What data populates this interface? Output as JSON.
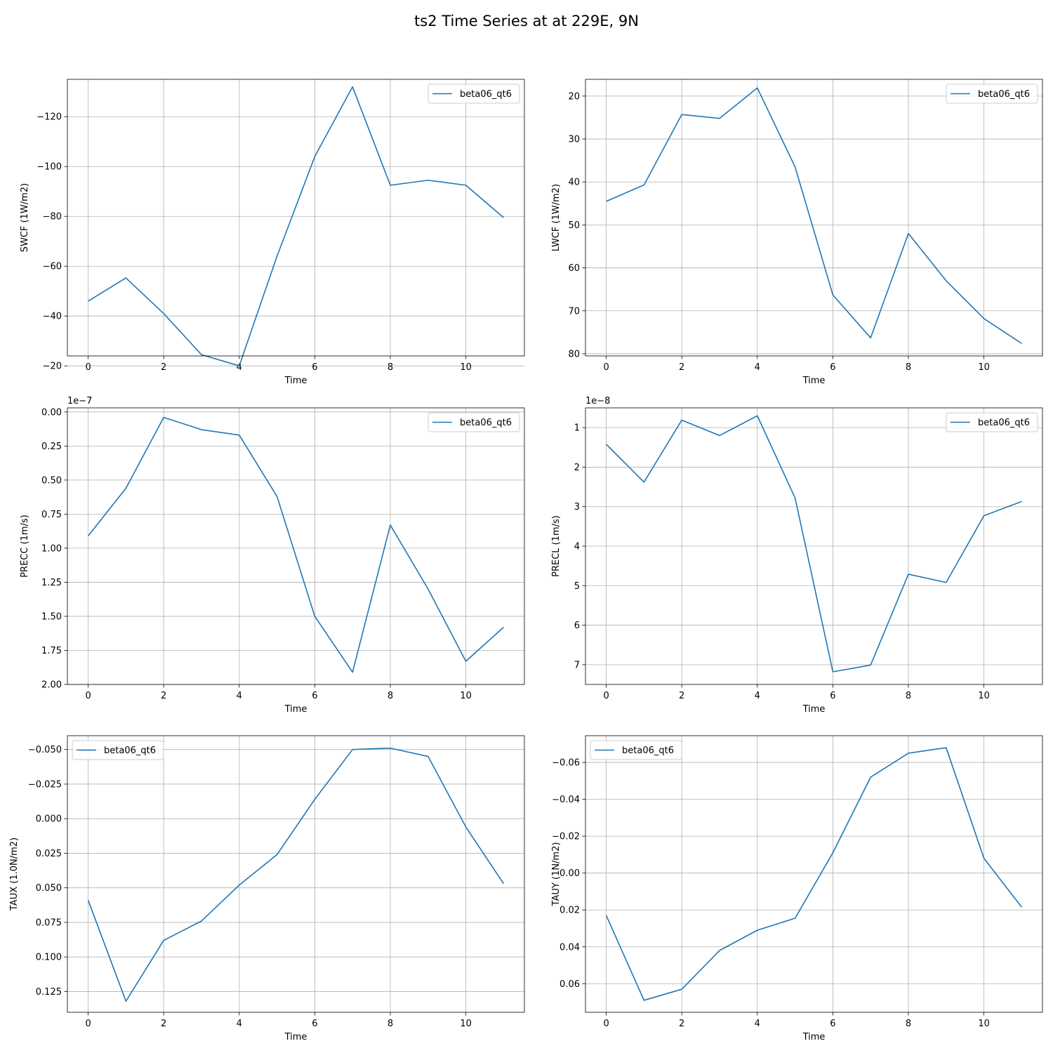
{
  "figure": {
    "title": "ts2 Time Series at at 229E, 9N"
  },
  "style": {
    "line_color": "#1f77b4",
    "grid_color": "#b0b0b0",
    "legend_border": "#cccccc"
  },
  "chart_data": [
    {
      "type": "line",
      "xlabel": "Time",
      "ylabel": "SWCF (1W/m2)",
      "offset_text": "",
      "xlim": [
        -0.55,
        11.55
      ],
      "ylim": [
        -24,
        -135
      ],
      "yscale_factor": 1,
      "grid": true,
      "legend_placement": "top-right",
      "x_ticks": [
        0,
        2,
        4,
        6,
        8,
        10
      ],
      "y_ticks": [
        -120,
        -100,
        -80,
        -60,
        -40,
        -20
      ],
      "y_tick_labels": [
        "−120",
        "−100",
        "−80",
        "−60",
        "−40",
        "−20"
      ],
      "x": [
        0,
        1,
        2,
        3,
        4,
        5,
        6,
        7,
        8,
        9,
        10,
        11
      ],
      "series": [
        {
          "name": "beta06_qt6",
          "values": [
            -46,
            -55.3,
            -41,
            -24.5,
            -20,
            -64,
            -104,
            -132,
            -92.5,
            -94.5,
            -92.5,
            -79.5
          ]
        }
      ]
    },
    {
      "type": "line",
      "xlabel": "Time",
      "ylabel": "LWCF (1W/m2)",
      "offset_text": "",
      "xlim": [
        -0.55,
        11.55
      ],
      "ylim": [
        80.5,
        16.1
      ],
      "yscale_factor": 1,
      "grid": true,
      "legend_placement": "top-right",
      "x_ticks": [
        0,
        2,
        4,
        6,
        8,
        10
      ],
      "y_ticks": [
        20,
        30,
        40,
        50,
        60,
        70,
        80
      ],
      "y_tick_labels": [
        "20",
        "30",
        "40",
        "50",
        "60",
        "70",
        "80"
      ],
      "x": [
        0,
        1,
        2,
        3,
        4,
        5,
        6,
        7,
        8,
        9,
        10,
        11
      ],
      "series": [
        {
          "name": "beta06_qt6",
          "values": [
            44.5,
            40.7,
            24.3,
            25.2,
            18.1,
            36.5,
            66.3,
            76.3,
            52,
            63,
            71.8,
            77.6
          ]
        }
      ]
    },
    {
      "type": "line",
      "xlabel": "Time",
      "ylabel": "PRECC (1m/s)",
      "offset_text": "1e−7",
      "xlim": [
        -0.55,
        11.55
      ],
      "ylim": [
        2.0,
        -0.03
      ],
      "yscale_factor": 1e-07,
      "grid": true,
      "legend_placement": "top-right",
      "x_ticks": [
        0,
        2,
        4,
        6,
        8,
        10
      ],
      "y_ticks": [
        0,
        0.25,
        0.5,
        0.75,
        1.0,
        1.25,
        1.5,
        1.75,
        2.0
      ],
      "y_tick_labels": [
        "0.00",
        "0.25",
        "0.50",
        "0.75",
        "1.00",
        "1.25",
        "1.50",
        "1.75",
        "2.00"
      ],
      "x": [
        0,
        1,
        2,
        3,
        4,
        5,
        6,
        7,
        8,
        9,
        10,
        11
      ],
      "series": [
        {
          "name": "beta06_qt6",
          "values": [
            0.91,
            0.56,
            0.04,
            0.13,
            0.17,
            0.62,
            1.5,
            1.91,
            0.83,
            1.3,
            1.83,
            1.58
          ]
        }
      ]
    },
    {
      "type": "line",
      "xlabel": "Time",
      "ylabel": "PRECL (1m/s)",
      "offset_text": "1e−8",
      "xlim": [
        -0.55,
        11.55
      ],
      "ylim": [
        7.5,
        0.5
      ],
      "yscale_factor": 1e-08,
      "grid": true,
      "legend_placement": "top-right",
      "x_ticks": [
        0,
        2,
        4,
        6,
        8,
        10
      ],
      "y_ticks": [
        1,
        2,
        3,
        4,
        5,
        6,
        7
      ],
      "y_tick_labels": [
        "1",
        "2",
        "3",
        "4",
        "5",
        "6",
        "7"
      ],
      "x": [
        0,
        1,
        2,
        3,
        4,
        5,
        6,
        7,
        8,
        9,
        10,
        11
      ],
      "series": [
        {
          "name": "beta06_qt6",
          "values": [
            1.42,
            2.38,
            0.81,
            1.2,
            0.7,
            2.78,
            7.18,
            7.01,
            4.71,
            4.92,
            3.23,
            2.87
          ]
        }
      ]
    },
    {
      "type": "line",
      "xlabel": "Time",
      "ylabel": "TAUX (1.0N/m2)",
      "offset_text": "",
      "xlim": [
        -0.55,
        11.55
      ],
      "ylim": [
        0.14,
        -0.06
      ],
      "yscale_factor": 1,
      "grid": true,
      "legend_placement": "top-left",
      "x_ticks": [
        0,
        2,
        4,
        6,
        8,
        10
      ],
      "y_ticks": [
        -0.05,
        -0.025,
        0,
        0.025,
        0.05,
        0.075,
        0.1,
        0.125
      ],
      "y_tick_labels": [
        "−0.050",
        "−0.025",
        "0.000",
        "0.025",
        "0.050",
        "0.075",
        "0.100",
        "0.125"
      ],
      "x": [
        0,
        1,
        2,
        3,
        4,
        5,
        6,
        7,
        8,
        9,
        10,
        11
      ],
      "series": [
        {
          "name": "beta06_qt6",
          "values": [
            0.059,
            0.132,
            0.088,
            0.074,
            0.048,
            0.026,
            -0.014,
            -0.05,
            -0.051,
            -0.045,
            0.006,
            0.047
          ]
        }
      ]
    },
    {
      "type": "line",
      "xlabel": "Time",
      "ylabel": "TAUY (1N/m2)",
      "offset_text": "",
      "xlim": [
        -0.55,
        11.55
      ],
      "ylim": [
        0.0755,
        -0.0745
      ],
      "yscale_factor": 1,
      "grid": true,
      "legend_placement": "top-left",
      "x_ticks": [
        0,
        2,
        4,
        6,
        8,
        10
      ],
      "y_ticks": [
        -0.06,
        -0.04,
        -0.02,
        0,
        0.02,
        0.04,
        0.06
      ],
      "y_tick_labels": [
        "−0.06",
        "−0.04",
        "−0.02",
        "0.00",
        "0.02",
        "0.04",
        "0.06"
      ],
      "x": [
        0,
        1,
        2,
        3,
        4,
        5,
        6,
        7,
        8,
        9,
        10,
        11
      ],
      "series": [
        {
          "name": "beta06_qt6",
          "values": [
            0.023,
            0.069,
            0.063,
            0.042,
            0.031,
            0.0245,
            -0.011,
            -0.052,
            -0.065,
            -0.068,
            -0.008,
            0.0185
          ]
        }
      ]
    }
  ]
}
